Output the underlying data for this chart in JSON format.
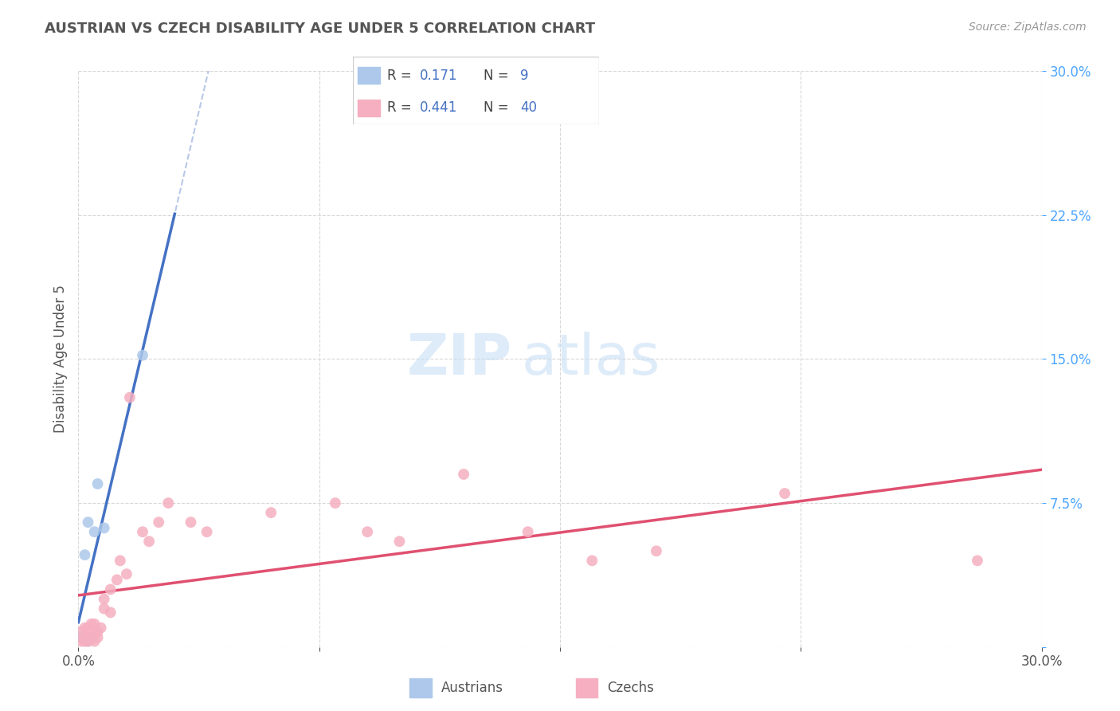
{
  "title": "AUSTRIAN VS CZECH DISABILITY AGE UNDER 5 CORRELATION CHART",
  "source_text": "Source: ZipAtlas.com",
  "ylabel": "Disability Age Under 5",
  "xlim": [
    0.0,
    0.3
  ],
  "ylim": [
    0.0,
    0.3
  ],
  "watermark_zip": "ZIP",
  "watermark_atlas": "atlas",
  "legend_austrians_r": "0.171",
  "legend_austrians_n": "9",
  "legend_czechs_r": "0.441",
  "legend_czechs_n": "40",
  "austrian_color": "#adc8ea",
  "czech_color": "#f5afc0",
  "austrian_line_color": "#4472c4",
  "czech_line_color": "#e05070",
  "trendline_color": "#b8c8e8",
  "background_color": "#ffffff",
  "grid_color": "#d8d8d8",
  "title_color": "#555555",
  "ylabel_color": "#555555",
  "ytick_color": "#4da6ff",
  "xtick_color": "#555555",
  "source_color": "#999999",
  "austrians_x": [
    0.001,
    0.002,
    0.003,
    0.003,
    0.004,
    0.005,
    0.006,
    0.008,
    0.02
  ],
  "austrians_y": [
    0.005,
    0.048,
    0.003,
    0.065,
    0.005,
    0.06,
    0.085,
    0.062,
    0.152
  ],
  "czechs_x": [
    0.001,
    0.001,
    0.002,
    0.002,
    0.002,
    0.003,
    0.003,
    0.003,
    0.004,
    0.004,
    0.005,
    0.005,
    0.005,
    0.006,
    0.006,
    0.007,
    0.008,
    0.008,
    0.01,
    0.01,
    0.012,
    0.013,
    0.015,
    0.016,
    0.02,
    0.022,
    0.025,
    0.028,
    0.035,
    0.04,
    0.06,
    0.08,
    0.09,
    0.1,
    0.12,
    0.14,
    0.16,
    0.18,
    0.22,
    0.28
  ],
  "czechs_y": [
    0.003,
    0.008,
    0.003,
    0.005,
    0.01,
    0.003,
    0.005,
    0.01,
    0.004,
    0.012,
    0.003,
    0.007,
    0.012,
    0.005,
    0.008,
    0.01,
    0.02,
    0.025,
    0.018,
    0.03,
    0.035,
    0.045,
    0.038,
    0.13,
    0.06,
    0.055,
    0.065,
    0.075,
    0.065,
    0.06,
    0.07,
    0.075,
    0.06,
    0.055,
    0.09,
    0.06,
    0.045,
    0.05,
    0.08,
    0.045
  ]
}
